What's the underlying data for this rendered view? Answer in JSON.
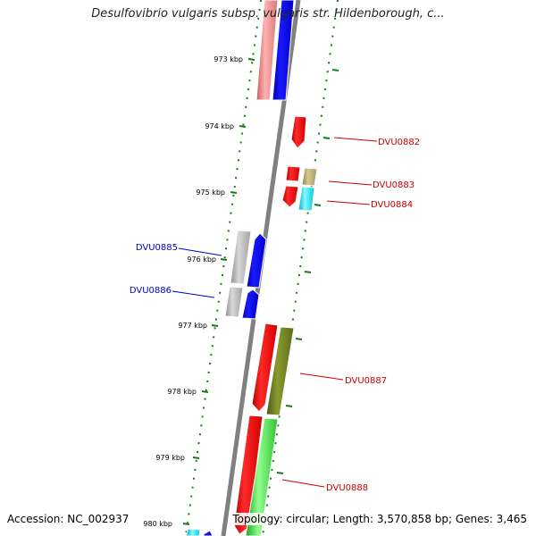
{
  "title": "Desulfovibrio vulgaris subsp. vulgaris str. Hildenborough, c...",
  "accession": "Accession: NC_002937",
  "topology": "Topology: circular; Length: 3,570,858 bp; Genes: 3,465",
  "scale": {
    "ticks": [
      "973 kbp",
      "974 kbp",
      "975 kbp",
      "976 kbp",
      "977 kbp",
      "978 kbp",
      "979 kbp",
      "980 kbp"
    ]
  },
  "genes": {
    "forward": [
      "DVU0882",
      "DVU0883",
      "DVU0884",
      "DVU0887",
      "DVU0888"
    ],
    "reverse": [
      "DVU0885",
      "DVU0886"
    ]
  },
  "colors": {
    "forward_label": "#cc0000",
    "reverse_label": "#0000cc",
    "tick": "#1a7a1a",
    "backbone": "#808080",
    "red": "#ff0000",
    "blue": "#0000ff",
    "gray": "#b0b0b0",
    "olive": "#6b7a1f",
    "tan": "#b8a870",
    "cyan": "#00e5ff",
    "green": "#44dd44",
    "pink": "#f08a8a"
  }
}
